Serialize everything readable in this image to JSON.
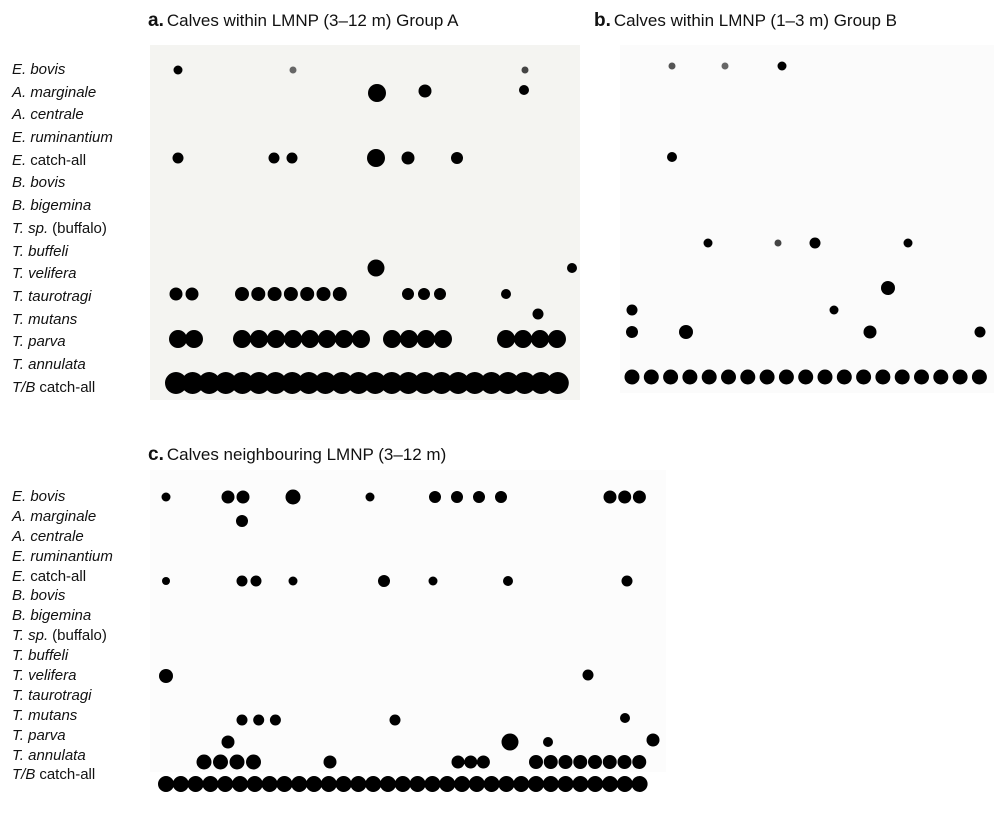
{
  "panels": [
    {
      "letter": "a.",
      "title": "Calves within LMNP (3–12 m) Group A"
    },
    {
      "letter": "b.",
      "title": "Calves within LMNP (1–3 m) Group B"
    },
    {
      "letter": "c.",
      "title": "Calves neighbouring LMNP (3–12 m)"
    }
  ],
  "row_labels_top": [
    {
      "italic": "E. bovis"
    },
    {
      "italic": "A. marginale"
    },
    {
      "italic": "A. centrale"
    },
    {
      "italic": "E. ruminantium"
    },
    {
      "italic": "E.",
      "plain": "catch-all"
    },
    {
      "italic": "B. bovis"
    },
    {
      "italic": "B. bigemina"
    },
    {
      "italic": "T. sp.",
      "plain": "(buffalo)"
    },
    {
      "italic": "T. buffeli"
    },
    {
      "italic": "T. velifera"
    },
    {
      "italic": "T. taurotragi"
    },
    {
      "italic": "T. mutans"
    },
    {
      "italic": "T. parva"
    },
    {
      "italic": "T. annulata"
    },
    {
      "italic": "T/B",
      "plain": "catch-all"
    }
  ],
  "row_labels_bottom": [
    {
      "italic": "E. bovis"
    },
    {
      "italic": "A. marginale"
    },
    {
      "italic": "A. centrale"
    },
    {
      "italic": "E. ruminantium"
    },
    {
      "italic": "E.",
      "plain": "catch-all"
    },
    {
      "italic": "B. bovis"
    },
    {
      "italic": "B. bigemina"
    },
    {
      "italic": "T. sp.",
      "plain": "(buffalo)"
    },
    {
      "italic": "T. buffeli"
    },
    {
      "italic": "T. velifera"
    },
    {
      "italic": "T. taurotragi"
    },
    {
      "italic": "T. mutans"
    },
    {
      "italic": "T. parva"
    },
    {
      "italic": "T. annulata"
    },
    {
      "italic": "T/B",
      "plain": "catch-all"
    }
  ]
}
